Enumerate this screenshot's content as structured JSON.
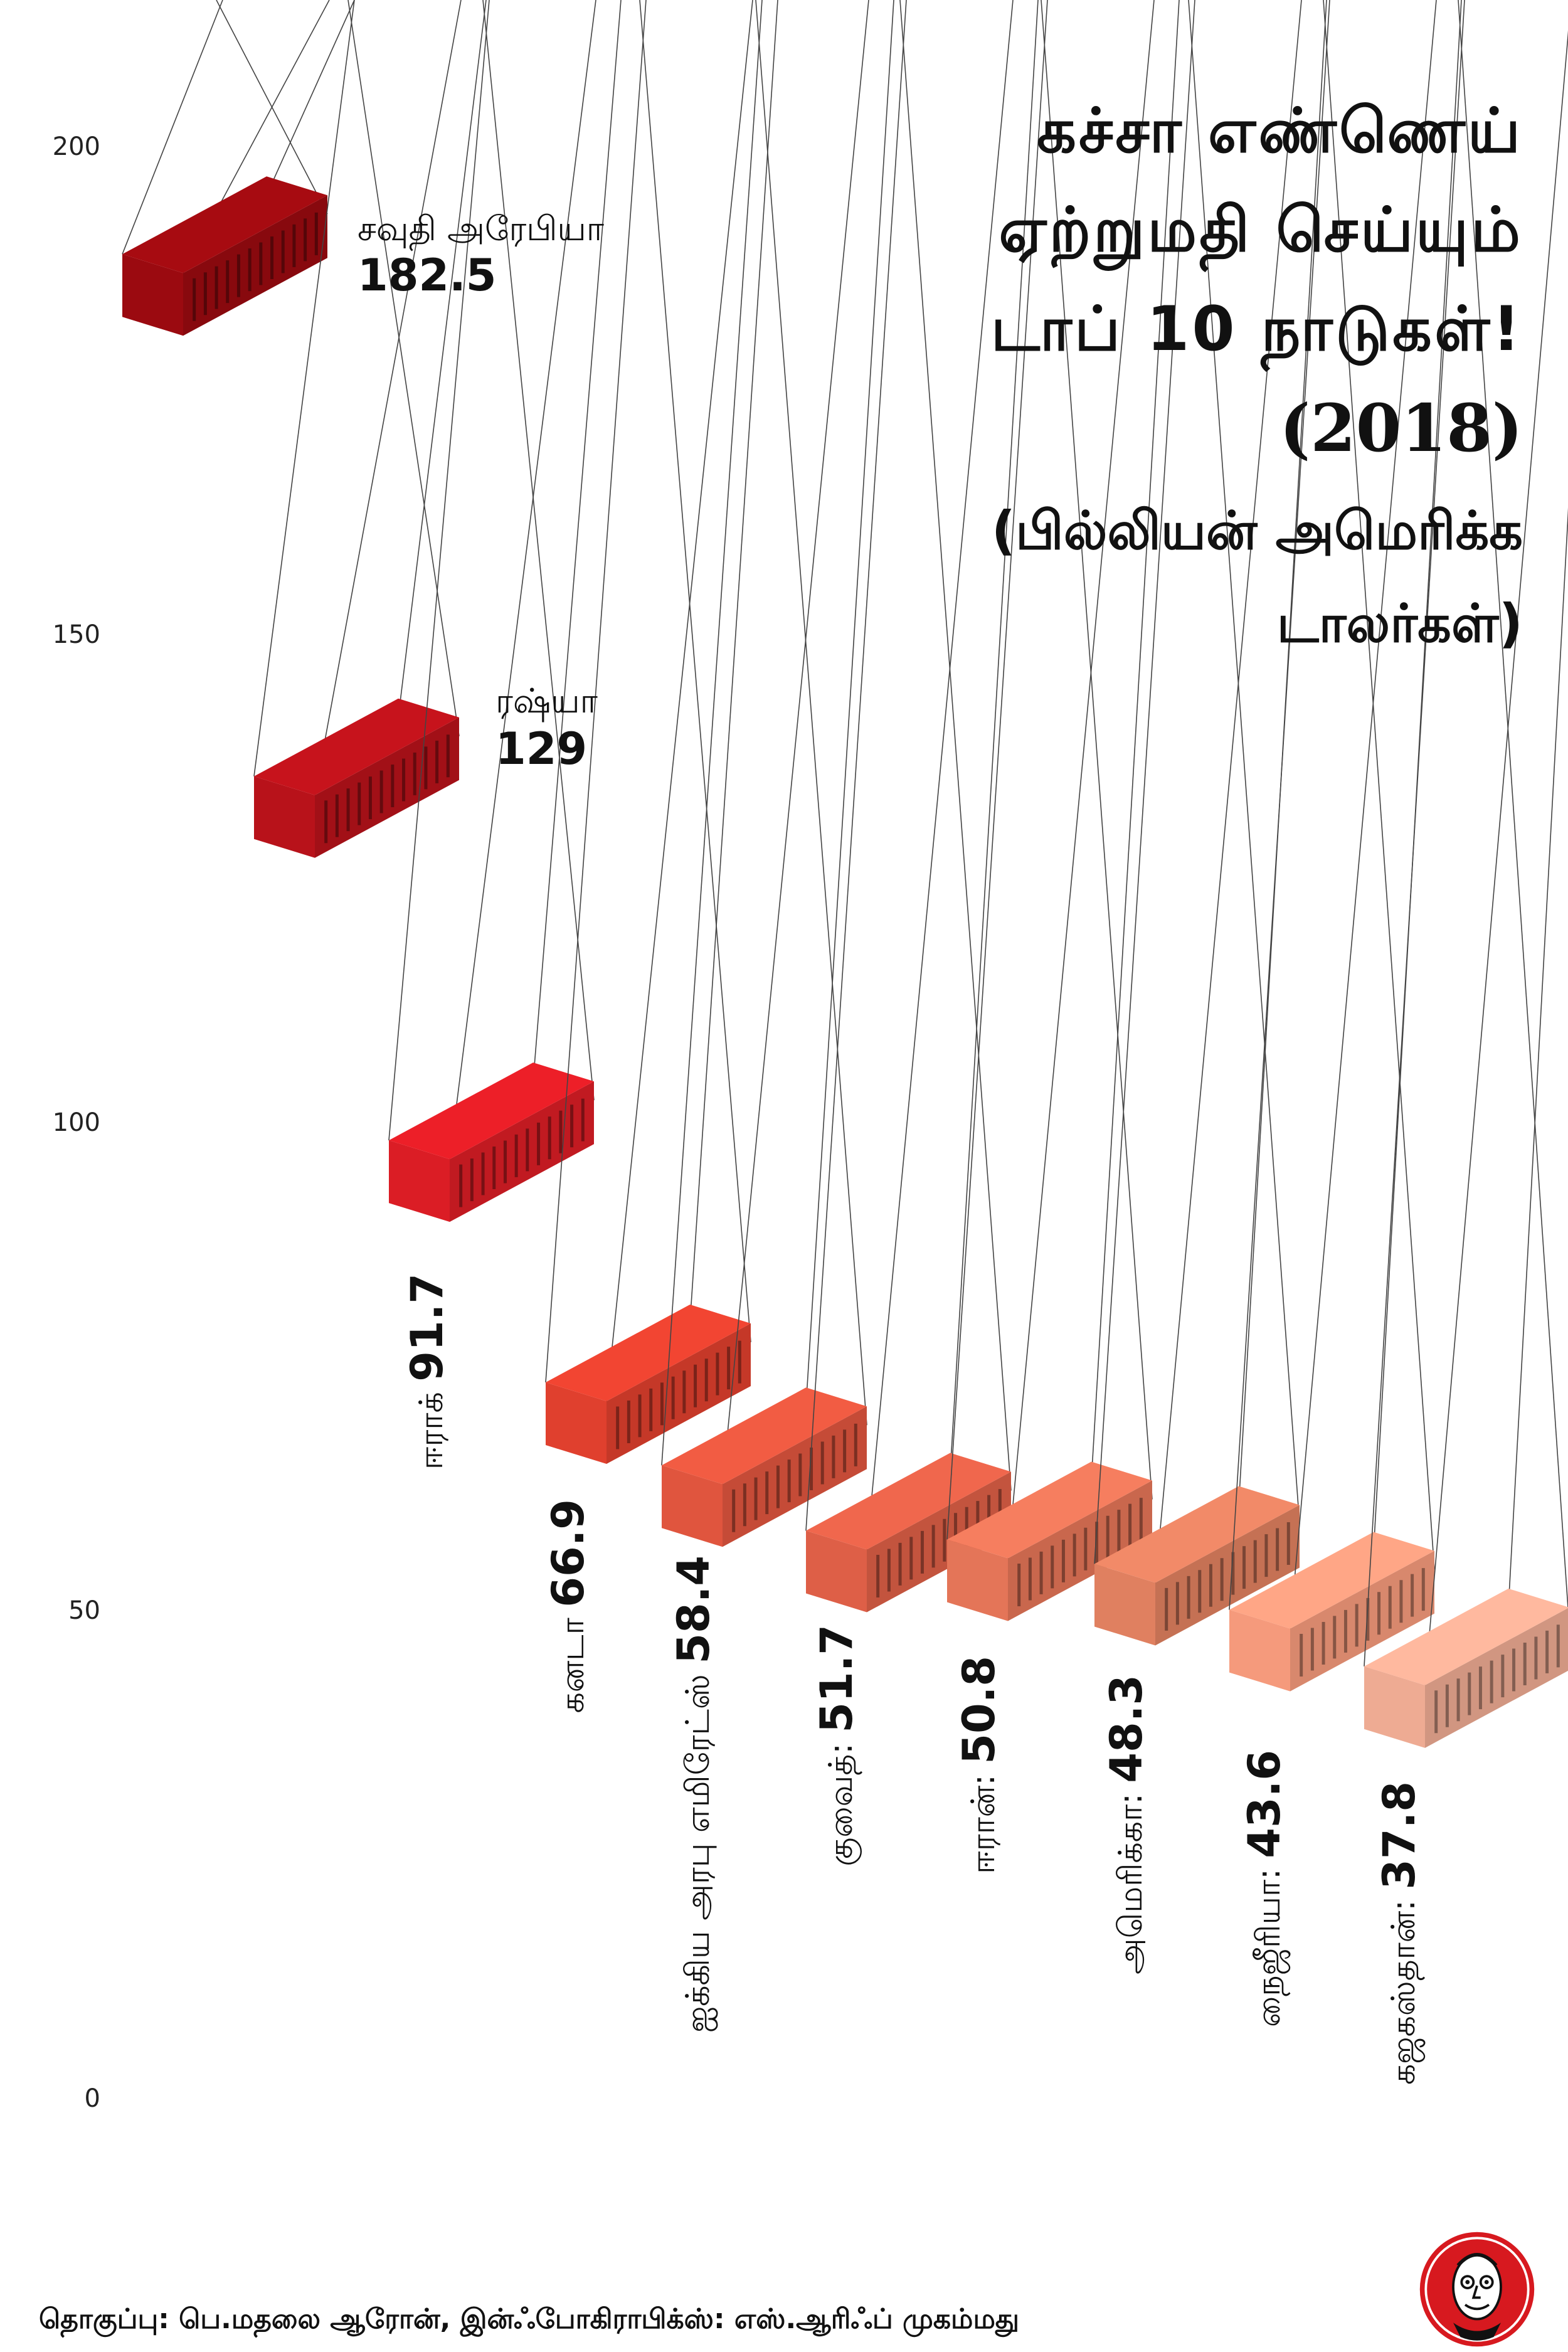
{
  "title": {
    "line1": "கச்சா எண்ணெய்",
    "line2": "ஏற்றுமதி செய்யும்",
    "line3": "டாப் 10 நாடுகள்!",
    "year": "(2018)",
    "unit_line1": "(பில்லியன் அமெரிக்க",
    "unit_line2": "டாலர்கள்)"
  },
  "credit": "தொகுப்பு: பெ.மதலை ஆரோன், இன்ஃபோகிராபிக்ஸ்: எஸ்.ஆரிஃப் முகம்மது",
  "logo": {
    "icon": "mascot-logo-icon",
    "color": "#d7191f"
  },
  "chart_data": {
    "type": "bar",
    "title": "கச்சா எண்ணெய் ஏற்றுமதி செய்யும் டாப் 10 நாடுகள்! (2018)",
    "unit": "(பில்லியன் அமெரிக்க டாலர்கள்)",
    "ylim": [
      0,
      200
    ],
    "y_ticks": [
      0,
      50,
      100,
      150,
      200
    ],
    "grid": false,
    "categories": [
      "சவுதி அரேபியா",
      "ரஷ்யா",
      "ஈராக்",
      "கனடா",
      "ஐக்கிய அரபு எமிரேட்ஸ்",
      "குவைத்:",
      "ஈரான்:",
      "அமெரிக்கா:",
      "நைஜீரியா:",
      "கஜகஸ்தான்:"
    ],
    "values": [
      182.5,
      129,
      91.7,
      66.9,
      58.4,
      51.7,
      50.8,
      48.3,
      43.6,
      37.8
    ],
    "value_labels": [
      "182.5",
      "129",
      "91.7",
      "66.9",
      "58.4",
      "51.7",
      "50.8",
      "48.3",
      "43.6",
      "37.8"
    ],
    "colors": [
      "#9b0a10",
      "#b8121a",
      "#db1d25",
      "#e0402e",
      "#e0553e",
      "#de5f47",
      "#e47558",
      "#e08060",
      "#f59a7c",
      "#eeab93"
    ]
  }
}
